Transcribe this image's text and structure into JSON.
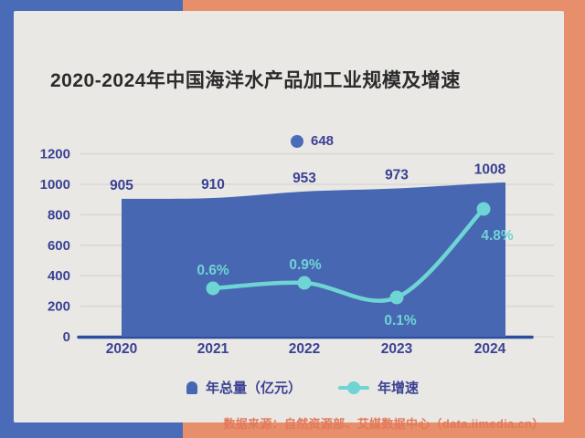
{
  "title": "2020-2024年中国海洋水产品加工业规模及增速",
  "floating_label": {
    "value": "648"
  },
  "chart_data": {
    "type": "area+line",
    "title": "2020-2024年中国海洋水产品加工业规模及增速",
    "categories": [
      "2020",
      "2021",
      "2022",
      "2023",
      "2024"
    ],
    "series": [
      {
        "name": "年总量（亿元）",
        "type": "area",
        "color": "#4767b2",
        "values": [
          905,
          910,
          953,
          973,
          1008
        ]
      },
      {
        "name": "年增速",
        "type": "line",
        "unit": "%",
        "color": "#6fd4d4",
        "values": [
          null,
          0.6,
          0.9,
          0.1,
          4.8
        ],
        "point_labels": [
          "",
          "0.6%",
          "0.9%",
          "0.1%",
          "4.8%"
        ]
      }
    ],
    "value_labels": [
      "905",
      "910",
      "953",
      "973",
      "1008"
    ],
    "ylim": [
      0,
      1200
    ],
    "yticks": [
      0,
      200,
      400,
      600,
      800,
      1000,
      1200
    ],
    "grid": true,
    "legend_position": "bottom"
  },
  "legend": {
    "items": [
      {
        "label": "年总量（亿元）",
        "marker": "area-marker"
      },
      {
        "label": "年增速",
        "marker": "line-dot-marker"
      }
    ]
  },
  "source": "数据来源：自然资源部、艾媒数据中心（data.iimedia.cn）",
  "colors": {
    "bg_left": "#4a6cb8",
    "bg_right": "#e78e6a",
    "card": "#e9e8e5",
    "area": "#4767b2",
    "line": "#6fd4d4",
    "axis_line": "#2e4d9f",
    "grid": "#d9d8d4",
    "axis_text": "#3b4193",
    "title_text": "#2b2b2b",
    "source_text": "#e2795a"
  }
}
